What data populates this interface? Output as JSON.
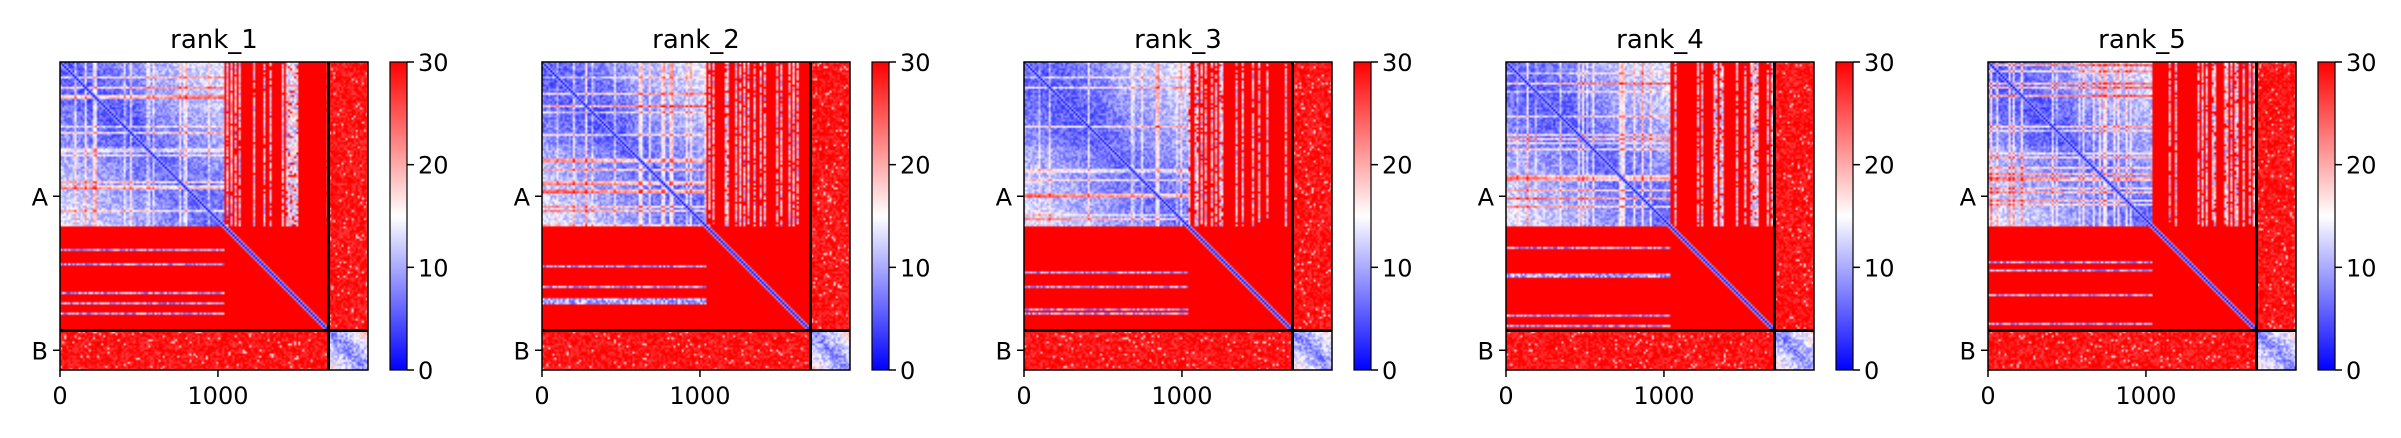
{
  "chart_data": [
    {
      "type": "heatmap",
      "title": "rank_1",
      "chains": [
        "A",
        "B"
      ],
      "chain_boundary": 1700,
      "total_length": 1950,
      "x_ticks": [
        0,
        1000
      ],
      "colorbar": {
        "min": 0,
        "max": 30,
        "ticks": [
          0,
          10,
          20,
          30
        ],
        "colors": [
          "#0000ff",
          "#ffffff",
          "#ff0000"
        ]
      }
    },
    {
      "type": "heatmap",
      "title": "rank_2",
      "chains": [
        "A",
        "B"
      ],
      "chain_boundary": 1700,
      "total_length": 1950,
      "x_ticks": [
        0,
        1000
      ],
      "colorbar": {
        "min": 0,
        "max": 30,
        "ticks": [
          0,
          10,
          20,
          30
        ],
        "colors": [
          "#0000ff",
          "#ffffff",
          "#ff0000"
        ]
      }
    },
    {
      "type": "heatmap",
      "title": "rank_3",
      "chains": [
        "A",
        "B"
      ],
      "chain_boundary": 1700,
      "total_length": 1950,
      "x_ticks": [
        0,
        1000
      ],
      "colorbar": {
        "min": 0,
        "max": 30,
        "ticks": [
          0,
          10,
          20,
          30
        ],
        "colors": [
          "#0000ff",
          "#ffffff",
          "#ff0000"
        ]
      }
    },
    {
      "type": "heatmap",
      "title": "rank_4",
      "chains": [
        "A",
        "B"
      ],
      "chain_boundary": 1700,
      "total_length": 1950,
      "x_ticks": [
        0,
        1000
      ],
      "colorbar": {
        "min": 0,
        "max": 30,
        "ticks": [
          0,
          10,
          20,
          30
        ],
        "colors": [
          "#0000ff",
          "#ffffff",
          "#ff0000"
        ]
      }
    },
    {
      "type": "heatmap",
      "title": "rank_5",
      "chains": [
        "A",
        "B"
      ],
      "chain_boundary": 1700,
      "total_length": 1950,
      "x_ticks": [
        0,
        1000
      ],
      "colorbar": {
        "min": 0,
        "max": 30,
        "ticks": [
          0,
          10,
          20,
          30
        ],
        "colors": [
          "#0000ff",
          "#ffffff",
          "#ff0000"
        ]
      }
    }
  ]
}
